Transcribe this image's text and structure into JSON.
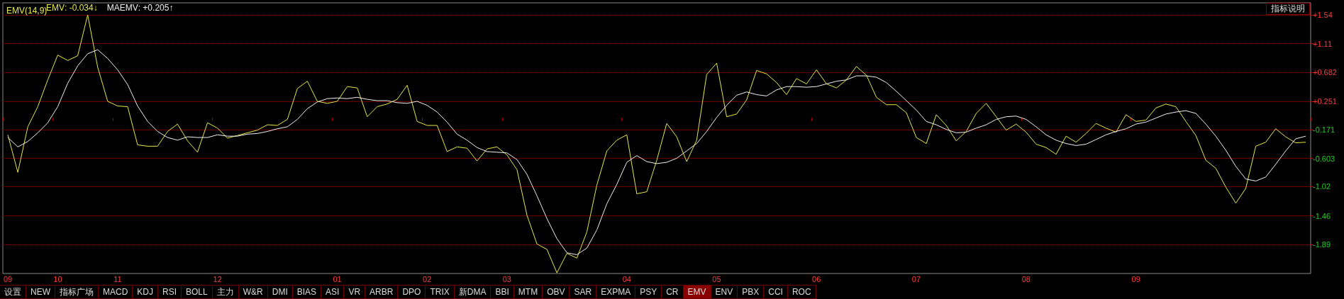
{
  "chart_data": {
    "type": "line",
    "title": "EMV(14,9)",
    "categories": [
      "09",
      null,
      null,
      null,
      null,
      "10",
      null,
      null,
      null,
      null,
      null,
      "11",
      null,
      null,
      null,
      null,
      null,
      null,
      null,
      null,
      null,
      "12",
      null,
      null,
      null,
      null,
      null,
      null,
      null,
      null,
      null,
      null,
      null,
      "01",
      null,
      null,
      null,
      null,
      null,
      null,
      null,
      null,
      "02",
      null,
      null,
      null,
      null,
      null,
      null,
      null,
      "03",
      null,
      null,
      null,
      null,
      null,
      null,
      null,
      null,
      null,
      null,
      null,
      "04",
      null,
      null,
      null,
      null,
      null,
      null,
      null,
      null,
      "05",
      null,
      null,
      null,
      null,
      null,
      null,
      null,
      null,
      null,
      "06",
      null,
      null,
      null,
      null,
      null,
      null,
      null,
      null,
      null,
      "07",
      null,
      null,
      null,
      null,
      null,
      null,
      null,
      null,
      null,
      null,
      "08",
      null,
      null,
      null,
      null,
      null,
      null,
      null,
      null,
      null,
      null,
      "09",
      null,
      null,
      null,
      null,
      null,
      null,
      null,
      null,
      null,
      null,
      null,
      null,
      null,
      null,
      null,
      null,
      null
    ],
    "ylim": [
      -2.32,
      1.72
    ],
    "yticks": [
      {
        "value": 1.54,
        "label": "+1.54"
      },
      {
        "value": 1.11,
        "label": "+1.11"
      },
      {
        "value": 0.682,
        "label": "+0.682"
      },
      {
        "value": 0.251,
        "label": "+0.251"
      },
      -0.171,
      -0.603,
      -1.02,
      -1.46,
      -1.89
    ],
    "grid": "y",
    "legend": "top left",
    "marker": "none",
    "line_style": "solid",
    "series": [
      {
        "name": "EMV",
        "color": "#e8e84a",
        "values": [
          -0.25,
          -0.81,
          -0.13,
          0.17,
          0.57,
          0.94,
          0.86,
          0.93,
          1.54,
          0.76,
          0.25,
          0.18,
          0.17,
          -0.4,
          -0.42,
          -0.42,
          -0.2,
          -0.09,
          -0.34,
          -0.51,
          -0.07,
          -0.15,
          -0.3,
          -0.26,
          -0.22,
          -0.18,
          -0.1,
          -0.11,
          -0.02,
          0.44,
          0.55,
          0.25,
          0.22,
          0.25,
          0.47,
          0.45,
          0.02,
          0.17,
          0.21,
          0.28,
          0.49,
          -0.05,
          -0.11,
          -0.11,
          -0.5,
          -0.43,
          -0.45,
          -0.64,
          -0.46,
          -0.43,
          -0.55,
          -0.77,
          -1.45,
          -1.88,
          -1.96,
          -2.31,
          -2.02,
          -2.09,
          -1.7,
          -1.0,
          -0.49,
          -0.33,
          -0.25,
          -1.13,
          -1.1,
          -0.63,
          -0.08,
          -0.28,
          -0.65,
          -0.33,
          0.65,
          0.82,
          0.02,
          0.06,
          0.27,
          0.71,
          0.66,
          0.53,
          0.35,
          0.59,
          0.51,
          0.72,
          0.51,
          0.45,
          0.57,
          0.77,
          0.64,
          0.31,
          0.2,
          0.2,
          0.08,
          -0.29,
          -0.38,
          0.05,
          -0.11,
          -0.34,
          -0.2,
          0.07,
          0.22,
          0.02,
          -0.18,
          -0.09,
          -0.21,
          -0.39,
          -0.44,
          -0.54,
          -0.27,
          -0.36,
          -0.23,
          -0.08,
          -0.15,
          -0.21,
          0.05,
          -0.05,
          -0.03,
          0.15,
          0.21,
          0.17,
          -0.05,
          -0.26,
          -0.63,
          -0.75,
          -1.03,
          -1.27,
          -1.05,
          -0.42,
          -0.36,
          -0.16,
          -0.28,
          -0.37,
          -0.36
        ]
      },
      {
        "name": "MAEMV",
        "color": "#f0f0f0",
        "values": [
          -0.29,
          -0.43,
          -0.35,
          -0.22,
          -0.07,
          0.17,
          0.52,
          0.78,
          0.96,
          1.02,
          0.89,
          0.72,
          0.5,
          0.18,
          -0.05,
          -0.2,
          -0.29,
          -0.33,
          -0.28,
          -0.29,
          -0.29,
          -0.25,
          -0.27,
          -0.27,
          -0.24,
          -0.23,
          -0.2,
          -0.16,
          -0.13,
          -0.02,
          0.14,
          0.24,
          0.29,
          0.3,
          0.29,
          0.31,
          0.28,
          0.26,
          0.26,
          0.23,
          0.22,
          0.25,
          0.19,
          0.09,
          -0.06,
          -0.24,
          -0.33,
          -0.44,
          -0.5,
          -0.51,
          -0.52,
          -0.62,
          -0.84,
          -1.16,
          -1.5,
          -1.8,
          -2.01,
          -2.04,
          -1.94,
          -1.67,
          -1.28,
          -0.99,
          -0.66,
          -0.56,
          -0.65,
          -0.68,
          -0.66,
          -0.6,
          -0.49,
          -0.38,
          -0.2,
          0.01,
          0.19,
          0.34,
          0.39,
          0.35,
          0.33,
          0.42,
          0.47,
          0.47,
          0.46,
          0.47,
          0.51,
          0.55,
          0.57,
          0.63,
          0.63,
          0.61,
          0.53,
          0.4,
          0.26,
          0.12,
          -0.05,
          -0.1,
          -0.17,
          -0.22,
          -0.21,
          -0.15,
          -0.1,
          -0.02,
          0.02,
          0.03,
          -0.02,
          -0.13,
          -0.25,
          -0.33,
          -0.38,
          -0.41,
          -0.39,
          -0.32,
          -0.25,
          -0.2,
          -0.16,
          -0.09,
          -0.06,
          0.0,
          0.06,
          0.09,
          0.11,
          0.07,
          -0.09,
          -0.27,
          -0.48,
          -0.72,
          -0.91,
          -0.94,
          -0.88,
          -0.69,
          -0.49,
          -0.31,
          -0.27
        ]
      }
    ],
    "annotations": [
      ": -0.034↓",
      ": +0.205↑",
      "指标说明",
      "设置",
      "NEW",
      "指标广场",
      "MACD",
      "KDJ",
      "RSI",
      "BOLL",
      "主力",
      "W&R",
      "DMI",
      "BIAS",
      "ASI",
      "VR",
      "ARBR",
      "DPO",
      "TRIX",
      "新DMA",
      "BBI",
      "MTM",
      "OBV",
      "SAR",
      "EXPMA",
      "PSY",
      "CR",
      "EMV",
      "ENV",
      "PBX",
      "CCI",
      "ROC"
    ]
  }
}
